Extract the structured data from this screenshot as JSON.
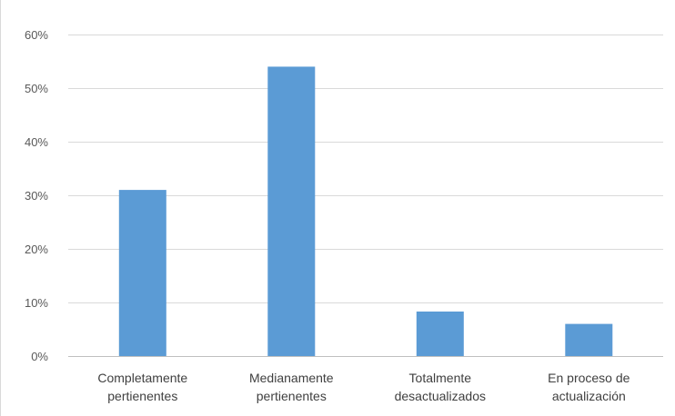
{
  "chart_data": {
    "type": "bar",
    "categories": [
      [
        "Completamente",
        "pertienentes"
      ],
      [
        "Medianamente",
        "pertienentes"
      ],
      [
        "Totalmente",
        "desactualizados"
      ],
      [
        "En proceso de",
        "actualización"
      ]
    ],
    "values": [
      0.31,
      0.54,
      0.083,
      0.06
    ],
    "ylim": [
      0,
      0.6
    ],
    "yticks": [
      0,
      0.1,
      0.2,
      0.3,
      0.4,
      0.5,
      0.6
    ],
    "ytick_labels": [
      "0%",
      "10%",
      "20%",
      "30%",
      "40%",
      "50%",
      "60%"
    ],
    "grid": true,
    "title": "",
    "xlabel": "",
    "ylabel": "",
    "colors": {
      "bar": "#5b9bd5",
      "grid": "#d9d9d9",
      "axis": "#bfbfbf"
    }
  }
}
